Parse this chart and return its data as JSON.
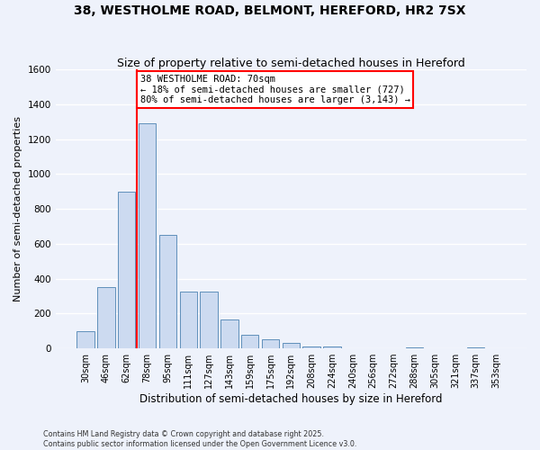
{
  "title": "38, WESTHOLME ROAD, BELMONT, HEREFORD, HR2 7SX",
  "subtitle": "Size of property relative to semi-detached houses in Hereford",
  "xlabel": "Distribution of semi-detached houses by size in Hereford",
  "ylabel": "Number of semi-detached properties",
  "footnote1": "Contains HM Land Registry data © Crown copyright and database right 2025.",
  "footnote2": "Contains public sector information licensed under the Open Government Licence v3.0.",
  "bar_labels": [
    "30sqm",
    "46sqm",
    "62sqm",
    "78sqm",
    "95sqm",
    "111sqm",
    "127sqm",
    "143sqm",
    "159sqm",
    "175sqm",
    "192sqm",
    "208sqm",
    "224sqm",
    "240sqm",
    "256sqm",
    "272sqm",
    "288sqm",
    "305sqm",
    "321sqm",
    "337sqm",
    "353sqm"
  ],
  "bar_values": [
    100,
    350,
    900,
    1290,
    650,
    325,
    325,
    165,
    80,
    50,
    30,
    10,
    10,
    0,
    0,
    0,
    5,
    0,
    0,
    5,
    0
  ],
  "bar_color": "#ccdaf0",
  "bar_edge_color": "#6090bb",
  "vline_color": "red",
  "annotation_title": "38 WESTHOLME ROAD: 70sqm",
  "annotation_line1": "← 18% of semi-detached houses are smaller (727)",
  "annotation_line2": "80% of semi-detached houses are larger (3,143) →",
  "ylim": [
    0,
    1600
  ],
  "yticks": [
    0,
    200,
    400,
    600,
    800,
    1000,
    1200,
    1400,
    1600
  ],
  "background_color": "#eef2fb",
  "grid_color": "#ffffff",
  "title_fontsize": 10,
  "subtitle_fontsize": 9,
  "ylabel_fontsize": 8,
  "xlabel_fontsize": 8.5
}
